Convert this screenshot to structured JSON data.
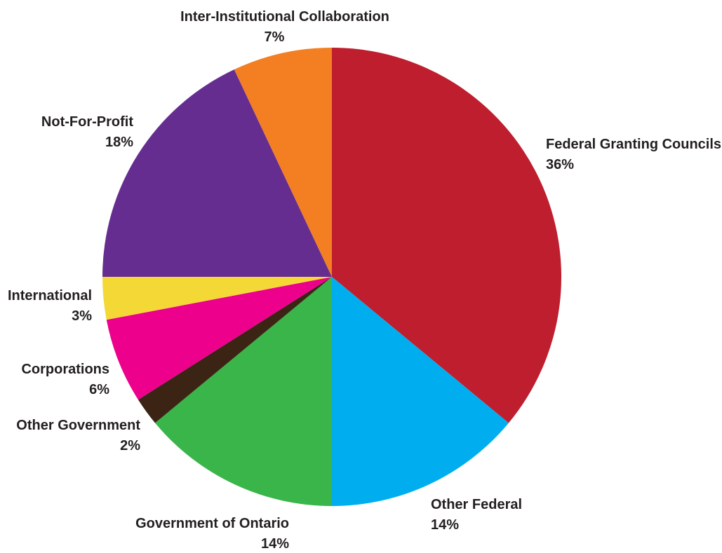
{
  "chart_data": {
    "type": "pie",
    "start_angle_deg": 0,
    "direction": "clockwise",
    "slices": [
      {
        "label": "Federal Granting Councils",
        "value": 36,
        "pct_text": "36%",
        "color": "#be1e2d"
      },
      {
        "label": "Other Federal",
        "value": 14,
        "pct_text": "14%",
        "color": "#00aeef"
      },
      {
        "label": "Government of Ontario",
        "value": 14,
        "pct_text": "14%",
        "color": "#39b54a"
      },
      {
        "label": "Other Government",
        "value": 2,
        "pct_text": "2%",
        "color": "#3c2415"
      },
      {
        "label": "Corporations",
        "value": 6,
        "pct_text": "6%",
        "color": "#ec008c"
      },
      {
        "label": "International",
        "value": 3,
        "pct_text": "3%",
        "color": "#f4d835"
      },
      {
        "label": "Not-For-Profit",
        "value": 18,
        "pct_text": "18%",
        "color": "#662d91"
      },
      {
        "label": "Inter-Institutional Collaboration",
        "value": 7,
        "pct_text": "7%",
        "color": "#f37f22"
      }
    ]
  }
}
